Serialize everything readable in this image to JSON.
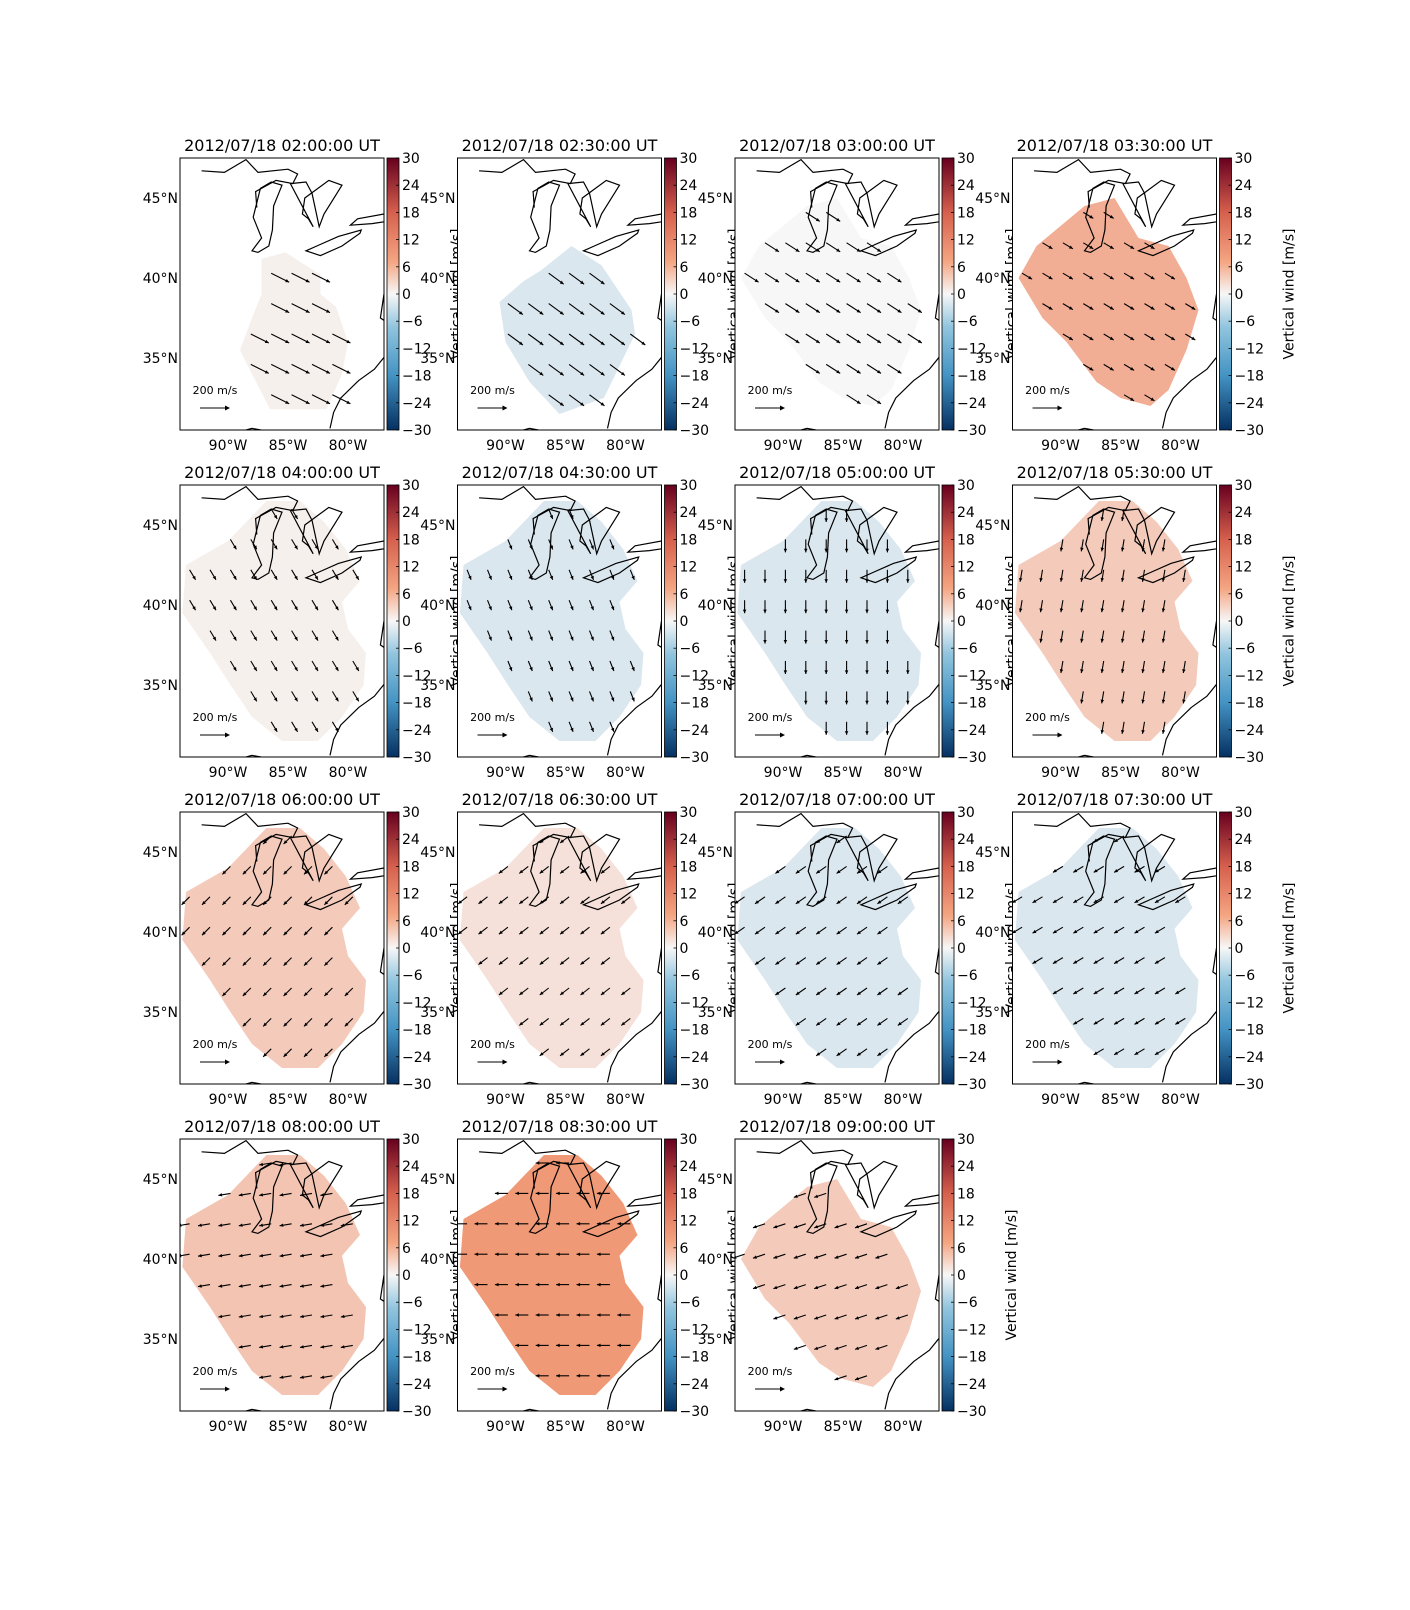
{
  "figure": {
    "colorbar_label": "Vertical wind [m/s]",
    "colorbar_ticks": [
      "30",
      "24",
      "18",
      "12",
      "6",
      "0",
      "−6",
      "−12",
      "−18",
      "−24",
      "−30"
    ],
    "lat_tick_labels": [
      "45°N",
      "40°N",
      "35°N"
    ],
    "lon_tick_labels": [
      "90°W",
      "85°W",
      "80°W"
    ],
    "reference_arrow_label": "200 m/s",
    "reference_arrow_value": 200,
    "colormap": "RdBu_r",
    "color_scale": {
      "neg_max": "#053061",
      "neg_mid": "#6aa8cf",
      "zero": "#f7f7f7",
      "pos_mid": "#ef8a62",
      "pos_max": "#67001f"
    }
  },
  "chart_data": [
    {
      "type": "heatmap",
      "title": "2012/07/18 02:00:00 UT",
      "color_value": 1,
      "wind_vector": [
        180,
        -90
      ],
      "xlim": [
        -94,
        -77
      ],
      "ylim": [
        30.5,
        47.5
      ],
      "clim": [
        -30,
        30
      ],
      "region": "south"
    },
    {
      "type": "heatmap",
      "title": "2012/07/18 02:30:00 UT",
      "color_value": -3,
      "wind_vector": [
        150,
        -110
      ],
      "xlim": [
        -94,
        -77
      ],
      "ylim": [
        30.5,
        47.5
      ],
      "clim": [
        -30,
        30
      ],
      "region": "mid"
    },
    {
      "type": "heatmap",
      "title": "2012/07/18 03:00:00 UT",
      "color_value": 0,
      "wind_vector": [
        140,
        -90
      ],
      "xlim": [
        -94,
        -77
      ],
      "ylim": [
        30.5,
        47.5
      ],
      "clim": [
        -30,
        30
      ],
      "region": "wide"
    },
    {
      "type": "heatmap",
      "title": "2012/07/18 03:30:00 UT",
      "color_value": 10,
      "wind_vector": [
        100,
        -60
      ],
      "xlim": [
        -94,
        -77
      ],
      "ylim": [
        30.5,
        47.5
      ],
      "clim": [
        -30,
        30
      ],
      "region": "wide"
    },
    {
      "type": "heatmap",
      "title": "2012/07/18 04:00:00 UT",
      "color_value": 1,
      "wind_vector": [
        60,
        -100
      ],
      "xlim": [
        -94,
        -77
      ],
      "ylim": [
        30.5,
        47.5
      ],
      "clim": [
        -30,
        30
      ],
      "region": "full"
    },
    {
      "type": "heatmap",
      "title": "2012/07/18 04:30:00 UT",
      "color_value": -3,
      "wind_vector": [
        40,
        -100
      ],
      "xlim": [
        -94,
        -77
      ],
      "ylim": [
        30.5,
        47.5
      ],
      "clim": [
        -30,
        30
      ],
      "region": "full"
    },
    {
      "type": "heatmap",
      "title": "2012/07/18 05:00:00 UT",
      "color_value": -3,
      "wind_vector": [
        0,
        -130
      ],
      "xlim": [
        -94,
        -77
      ],
      "ylim": [
        30.5,
        47.5
      ],
      "clim": [
        -30,
        30
      ],
      "region": "full"
    },
    {
      "type": "heatmap",
      "title": "2012/07/18 05:30:00 UT",
      "color_value": 6,
      "wind_vector": [
        -20,
        -120
      ],
      "xlim": [
        -94,
        -77
      ],
      "ylim": [
        30.5,
        47.5
      ],
      "clim": [
        -30,
        30
      ],
      "region": "full"
    },
    {
      "type": "heatmap",
      "title": "2012/07/18 06:00:00 UT",
      "color_value": 6,
      "wind_vector": [
        -80,
        -80
      ],
      "xlim": [
        -94,
        -77
      ],
      "ylim": [
        30.5,
        47.5
      ],
      "clim": [
        -30,
        30
      ],
      "region": "full"
    },
    {
      "type": "heatmap",
      "title": "2012/07/18 06:30:00 UT",
      "color_value": 3,
      "wind_vector": [
        -90,
        -70
      ],
      "xlim": [
        -94,
        -77
      ],
      "ylim": [
        30.5,
        47.5
      ],
      "clim": [
        -30,
        30
      ],
      "region": "full"
    },
    {
      "type": "heatmap",
      "title": "2012/07/18 07:00:00 UT",
      "color_value": -3,
      "wind_vector": [
        -100,
        -70
      ],
      "xlim": [
        -94,
        -77
      ],
      "ylim": [
        30.5,
        47.5
      ],
      "clim": [
        -30,
        30
      ],
      "region": "full"
    },
    {
      "type": "heatmap",
      "title": "2012/07/18 07:30:00 UT",
      "color_value": -3,
      "wind_vector": [
        -100,
        -60
      ],
      "xlim": [
        -94,
        -77
      ],
      "ylim": [
        30.5,
        47.5
      ],
      "clim": [
        -30,
        30
      ],
      "region": "full"
    },
    {
      "type": "heatmap",
      "title": "2012/07/18 08:00:00 UT",
      "color_value": 7,
      "wind_vector": [
        -120,
        -20
      ],
      "xlim": [
        -94,
        -77
      ],
      "ylim": [
        30.5,
        47.5
      ],
      "clim": [
        -30,
        30
      ],
      "region": "full"
    },
    {
      "type": "heatmap",
      "title": "2012/07/18 08:30:00 UT",
      "color_value": 13,
      "wind_vector": [
        -130,
        0
      ],
      "xlim": [
        -94,
        -77
      ],
      "ylim": [
        30.5,
        47.5
      ],
      "clim": [
        -30,
        30
      ],
      "region": "full"
    },
    {
      "type": "heatmap",
      "title": "2012/07/18 09:00:00 UT",
      "color_value": 6,
      "wind_vector": [
        -120,
        -40
      ],
      "xlim": [
        -94,
        -77
      ],
      "ylim": [
        30.5,
        47.5
      ],
      "clim": [
        -30,
        30
      ],
      "region": "wide"
    }
  ]
}
